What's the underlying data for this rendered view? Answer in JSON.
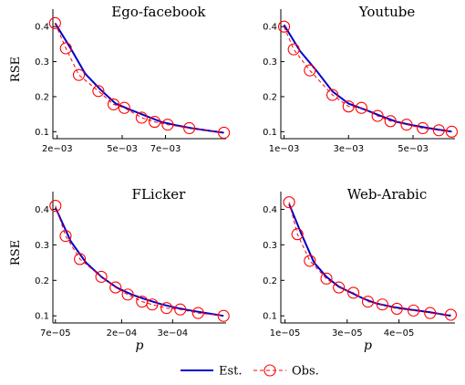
{
  "chart_data": [
    {
      "type": "line",
      "title": "Ego-facebook",
      "ylabel": "RSE",
      "xlabel": "",
      "xlim": [
        0.0018,
        0.0098
      ],
      "ylim": [
        0.08,
        0.45
      ],
      "xticks": [
        {
          "v": 0.002,
          "label": "2e−03"
        },
        {
          "v": 0.005,
          "label": "5e−03"
        },
        {
          "v": 0.007,
          "label": "7e−03"
        }
      ],
      "yticks": [
        {
          "v": 0.1,
          "label": "0.1"
        },
        {
          "v": 0.2,
          "label": "0.2"
        },
        {
          "v": 0.3,
          "label": "0.3"
        },
        {
          "v": 0.4,
          "label": "0.4"
        }
      ],
      "series": [
        {
          "name": "Est.",
          "style": "line",
          "color": "#0000cc",
          "x": [
            0.0019,
            0.0026,
            0.0033,
            0.004,
            0.0047,
            0.0054,
            0.0061,
            0.0068,
            0.0075,
            0.0082,
            0.009,
            0.0097
          ],
          "y": [
            0.41,
            0.34,
            0.265,
            0.22,
            0.18,
            0.162,
            0.145,
            0.128,
            0.118,
            0.11,
            0.103,
            0.097
          ]
        },
        {
          "name": "Obs.",
          "style": "circles",
          "color": "#ff0000",
          "x": [
            0.0019,
            0.0024,
            0.003,
            0.0039,
            0.0046,
            0.0051,
            0.0059,
            0.0065,
            0.0071,
            0.0081,
            0.0097
          ],
          "y": [
            0.41,
            0.338,
            0.262,
            0.216,
            0.178,
            0.168,
            0.14,
            0.128,
            0.12,
            0.11,
            0.097
          ]
        }
      ]
    },
    {
      "type": "line",
      "title": "Youtube",
      "ylabel": "",
      "xlabel": "",
      "xlim": [
        0.0009,
        0.0063
      ],
      "ylim": [
        0.08,
        0.45
      ],
      "xticks": [
        {
          "v": 0.001,
          "label": "1e−03"
        },
        {
          "v": 0.003,
          "label": "3e−03"
        },
        {
          "v": 0.005,
          "label": "5e−03"
        }
      ],
      "yticks": [
        {
          "v": 0.1,
          "label": "0.1"
        },
        {
          "v": 0.2,
          "label": "0.2"
        },
        {
          "v": 0.3,
          "label": "0.3"
        },
        {
          "v": 0.4,
          "label": "0.4"
        }
      ],
      "series": [
        {
          "name": "Est.",
          "style": "line",
          "color": "#0000cc",
          "x": [
            0.001,
            0.0015,
            0.002,
            0.0025,
            0.003,
            0.0035,
            0.004,
            0.0045,
            0.005,
            0.0055,
            0.006,
            0.0062
          ],
          "y": [
            0.405,
            0.33,
            0.275,
            0.215,
            0.18,
            0.163,
            0.145,
            0.128,
            0.118,
            0.11,
            0.103,
            0.1
          ]
        },
        {
          "name": "Obs.",
          "style": "circles",
          "color": "#ff0000",
          "x": [
            0.001,
            0.0013,
            0.0018,
            0.0025,
            0.003,
            0.0034,
            0.0039,
            0.0043,
            0.0048,
            0.0053,
            0.0058,
            0.0062
          ],
          "y": [
            0.4,
            0.335,
            0.275,
            0.205,
            0.172,
            0.168,
            0.145,
            0.13,
            0.12,
            0.11,
            0.104,
            0.1
          ]
        }
      ]
    },
    {
      "type": "line",
      "title": "FLicker",
      "ylabel": "RSE",
      "xlabel": "p",
      "xlim": [
        6.5e-05,
        0.000405
      ],
      "ylim": [
        0.08,
        0.45
      ],
      "xticks": [
        {
          "v": 7e-05,
          "label": "7e−05"
        },
        {
          "v": 0.0002,
          "label": "2e−04"
        },
        {
          "v": 0.0003,
          "label": "3e−04"
        }
      ],
      "yticks": [
        {
          "v": 0.1,
          "label": "0.1"
        },
        {
          "v": 0.2,
          "label": "0.2"
        },
        {
          "v": 0.3,
          "label": "0.3"
        },
        {
          "v": 0.4,
          "label": "0.4"
        }
      ],
      "series": [
        {
          "name": "Est.",
          "style": "line",
          "color": "#0000cc",
          "x": [
            7e-05,
            0.0001,
            0.00013,
            0.00016,
            0.00019,
            0.00022,
            0.00025,
            0.00028,
            0.00031,
            0.00034,
            0.00037,
            0.0004
          ],
          "y": [
            0.405,
            0.31,
            0.25,
            0.21,
            0.18,
            0.16,
            0.145,
            0.132,
            0.122,
            0.114,
            0.107,
            0.1
          ]
        },
        {
          "name": "Obs.",
          "style": "circles",
          "color": "#ff0000",
          "x": [
            7e-05,
            9e-05,
            0.000118,
            0.00016,
            0.000188,
            0.000212,
            0.00024,
            0.00026,
            0.000288,
            0.000315,
            0.00035,
            0.0004
          ],
          "y": [
            0.41,
            0.325,
            0.26,
            0.21,
            0.18,
            0.16,
            0.14,
            0.132,
            0.122,
            0.118,
            0.108,
            0.1
          ]
        }
      ]
    },
    {
      "type": "line",
      "title": "Web-Arabic",
      "ylabel": "",
      "xlabel": "p",
      "xlim": [
        9e-06,
        5.1e-05
      ],
      "ylim": [
        0.08,
        0.45
      ],
      "xticks": [
        {
          "v": 1e-05,
          "label": "1e−05"
        },
        {
          "v": 2.5e-05,
          "label": "3e−05"
        },
        {
          "v": 3.75e-05,
          "label": "4e−05"
        }
      ],
      "yticks": [
        {
          "v": 0.1,
          "label": "0.1"
        },
        {
          "v": 0.2,
          "label": "0.2"
        },
        {
          "v": 0.3,
          "label": "0.3"
        },
        {
          "v": 0.4,
          "label": "0.4"
        }
      ],
      "series": [
        {
          "name": "Est.",
          "style": "line",
          "color": "#0000cc",
          "x": [
            1.1e-05,
            1.4e-05,
            1.7e-05,
            2e-05,
            2.3e-05,
            2.6e-05,
            2.9e-05,
            3.2e-05,
            3.6e-05,
            4e-05,
            4.5e-05,
            5e-05
          ],
          "y": [
            0.415,
            0.33,
            0.25,
            0.21,
            0.182,
            0.165,
            0.148,
            0.135,
            0.125,
            0.118,
            0.11,
            0.1
          ]
        },
        {
          "name": "Obs.",
          "style": "circles",
          "color": "#ff0000",
          "x": [
            1.1e-05,
            1.3e-05,
            1.6e-05,
            2e-05,
            2.3e-05,
            2.65e-05,
            3e-05,
            3.35e-05,
            3.7e-05,
            4.1e-05,
            4.5e-05,
            5e-05
          ],
          "y": [
            0.42,
            0.33,
            0.255,
            0.205,
            0.18,
            0.165,
            0.14,
            0.132,
            0.12,
            0.115,
            0.108,
            0.103
          ]
        }
      ]
    }
  ],
  "legend": {
    "placement": "bottom-center",
    "items": [
      {
        "label": "Est.",
        "style": "line",
        "color": "#0000cc"
      },
      {
        "label": "Obs.",
        "style": "circle-line",
        "color": "#ff0000"
      }
    ]
  }
}
